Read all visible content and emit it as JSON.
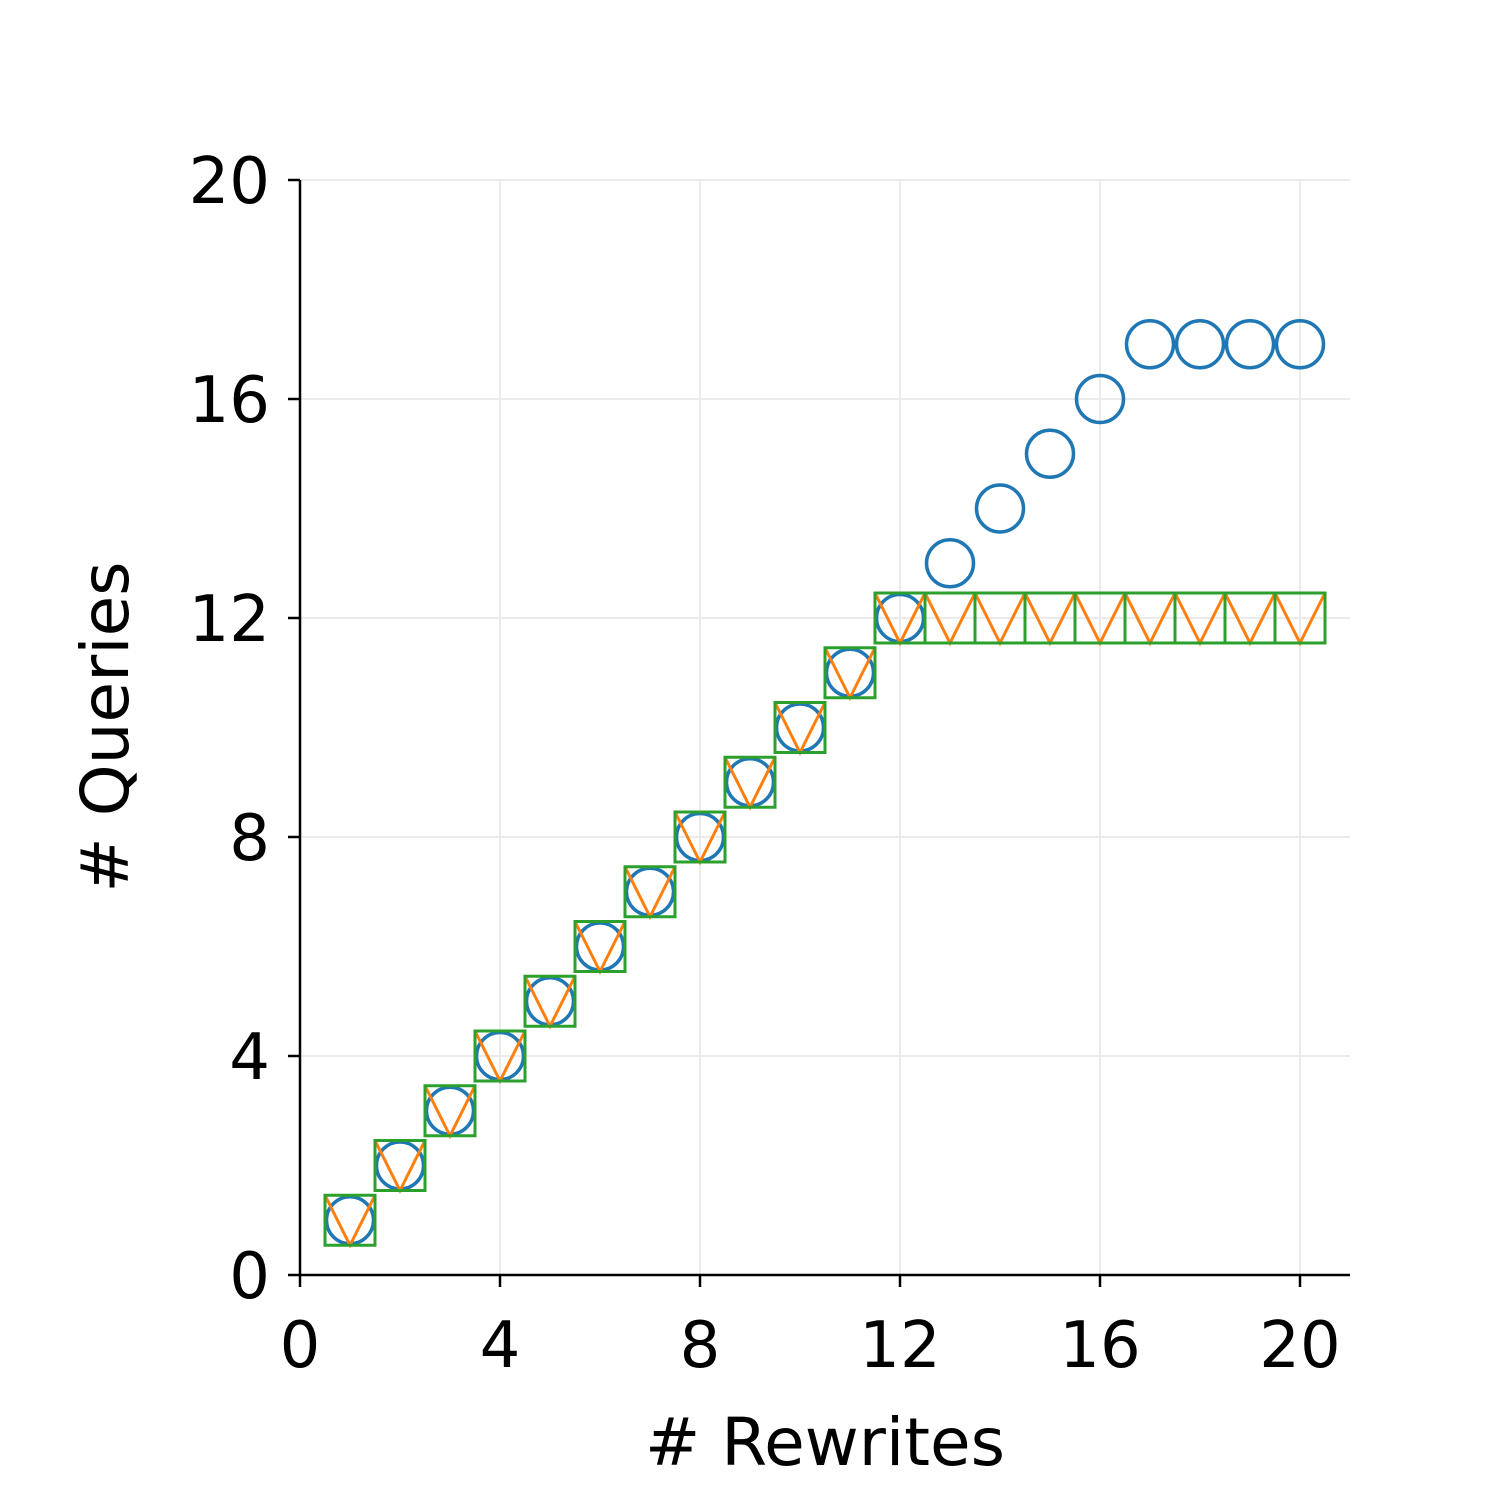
{
  "chart_data": {
    "type": "scatter",
    "title": "",
    "xlabel": "# Rewrites",
    "ylabel": "# Queries",
    "xlim": [
      0,
      21
    ],
    "ylim": [
      0,
      20
    ],
    "xticks": [
      "0",
      "4",
      "8",
      "12",
      "16",
      "20"
    ],
    "yticks": [
      "0",
      "4",
      "8",
      "12",
      "16",
      "20"
    ],
    "grid": true,
    "legend": "none",
    "series": [
      {
        "marker": "circle",
        "color": "#1f77b4",
        "x": [
          1,
          2,
          3,
          4,
          5,
          6,
          7,
          8,
          9,
          10,
          11,
          12,
          13,
          14,
          15,
          16,
          17,
          18,
          19,
          20
        ],
        "y": [
          1,
          2,
          3,
          4,
          5,
          6,
          7,
          8,
          9,
          10,
          11,
          12,
          13,
          14,
          15,
          16,
          17,
          17,
          17,
          17
        ]
      },
      {
        "marker": "triangle-down",
        "color": "#ff7f0e",
        "x": [
          1,
          2,
          3,
          4,
          5,
          6,
          7,
          8,
          9,
          10,
          11,
          12,
          13,
          14,
          15,
          16,
          17,
          18,
          19,
          20
        ],
        "y": [
          1,
          2,
          3,
          4,
          5,
          6,
          7,
          8,
          9,
          10,
          11,
          12,
          12,
          12,
          12,
          12,
          12,
          12,
          12,
          12
        ]
      },
      {
        "marker": "square",
        "color": "#2ca02c",
        "x": [
          1,
          2,
          3,
          4,
          5,
          6,
          7,
          8,
          9,
          10,
          11,
          12,
          13,
          14,
          15,
          16,
          17,
          18,
          19,
          20
        ],
        "y": [
          1,
          2,
          3,
          4,
          5,
          6,
          7,
          8,
          9,
          10,
          11,
          12,
          12,
          12,
          12,
          12,
          12,
          12,
          12,
          12
        ]
      }
    ]
  }
}
